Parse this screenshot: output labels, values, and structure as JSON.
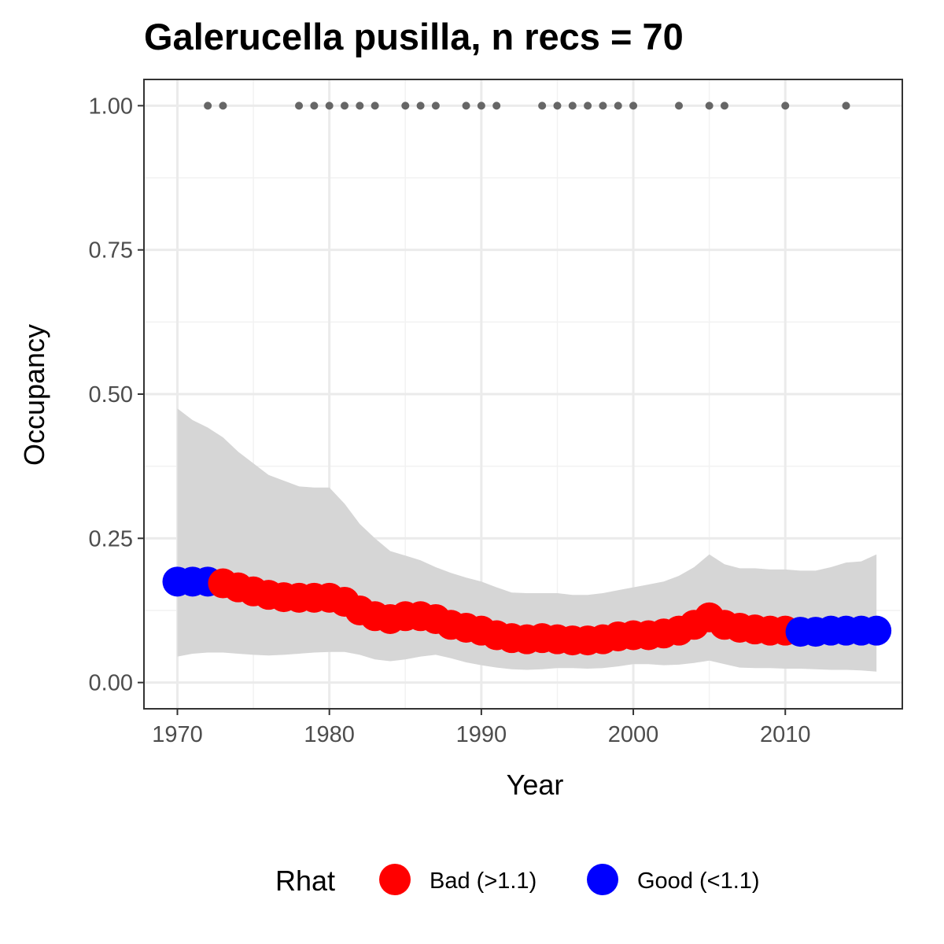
{
  "chart_data": {
    "type": "scatter",
    "title": "Galerucella pusilla, n recs = 70",
    "xlabel": "Year",
    "ylabel": "Occupancy",
    "xlim": [
      1967.8,
      2017.7
    ],
    "ylim": [
      -0.0455,
      1.0455
    ],
    "x_ticks": [
      1970,
      1980,
      1990,
      2000,
      2010
    ],
    "x_tick_labels": [
      "1970",
      "1980",
      "1990",
      "2000",
      "2010"
    ],
    "y_ticks": [
      0,
      0.25,
      0.5,
      0.75,
      1.0
    ],
    "y_tick_labels": [
      "0.00",
      "0.25",
      "0.50",
      "0.75",
      "1.00"
    ],
    "grid": true,
    "legend": {
      "title": "Rhat",
      "position": "bottom",
      "entries": [
        {
          "label": "Bad (>1.1)",
          "color": "#ff0000"
        },
        {
          "label": "Good (<1.1)",
          "color": "#0000ff"
        }
      ]
    },
    "observations": {
      "y": 1.0,
      "color": "#666666",
      "x": [
        1972,
        1973,
        1978,
        1979,
        1980,
        1981,
        1982,
        1983,
        1985,
        1986,
        1987,
        1989,
        1990,
        1991,
        1994,
        1995,
        1996,
        1997,
        1998,
        1999,
        2000,
        2003,
        2005,
        2006,
        2010,
        2014
      ]
    },
    "ribbon": {
      "color": "#d6d6d6",
      "x": [
        1970,
        1971,
        1972,
        1973,
        1974,
        1975,
        1976,
        1977,
        1978,
        1979,
        1980,
        1981,
        1982,
        1983,
        1984,
        1985,
        1986,
        1987,
        1988,
        1989,
        1990,
        1991,
        1992,
        1993,
        1994,
        1995,
        1996,
        1997,
        1998,
        1999,
        2000,
        2001,
        2002,
        2003,
        2004,
        2005,
        2006,
        2007,
        2008,
        2009,
        2010,
        2011,
        2012,
        2013,
        2014,
        2015,
        2016
      ],
      "lower": [
        0.045,
        0.05,
        0.052,
        0.052,
        0.05,
        0.048,
        0.047,
        0.048,
        0.05,
        0.052,
        0.053,
        0.053,
        0.048,
        0.04,
        0.037,
        0.04,
        0.045,
        0.048,
        0.042,
        0.035,
        0.03,
        0.026,
        0.023,
        0.022,
        0.023,
        0.025,
        0.025,
        0.024,
        0.025,
        0.028,
        0.032,
        0.032,
        0.03,
        0.031,
        0.034,
        0.038,
        0.032,
        0.026,
        0.025,
        0.025,
        0.024,
        0.024,
        0.023,
        0.022,
        0.022,
        0.021,
        0.019
      ],
      "upper": [
        0.475,
        0.455,
        0.442,
        0.425,
        0.4,
        0.38,
        0.36,
        0.35,
        0.34,
        0.338,
        0.338,
        0.31,
        0.275,
        0.25,
        0.228,
        0.22,
        0.212,
        0.2,
        0.19,
        0.182,
        0.175,
        0.165,
        0.156,
        0.155,
        0.155,
        0.155,
        0.152,
        0.152,
        0.155,
        0.16,
        0.165,
        0.17,
        0.175,
        0.185,
        0.2,
        0.222,
        0.205,
        0.198,
        0.198,
        0.196,
        0.196,
        0.194,
        0.194,
        0.2,
        0.208,
        0.21,
        0.222
      ]
    },
    "series": [
      {
        "name": "Bad (>1.1)",
        "color": "#ff0000",
        "x": [
          1973,
          1974,
          1975,
          1976,
          1977,
          1978,
          1979,
          1980,
          1981,
          1982,
          1983,
          1984,
          1985,
          1986,
          1987,
          1988,
          1989,
          1990,
          1991,
          1992,
          1993,
          1994,
          1995,
          1996,
          1997,
          1998,
          1999,
          2000,
          2001,
          2002,
          2003,
          2004,
          2005,
          2006,
          2007,
          2008,
          2009,
          2010
        ],
        "y": [
          0.172,
          0.165,
          0.158,
          0.152,
          0.148,
          0.147,
          0.147,
          0.147,
          0.14,
          0.125,
          0.115,
          0.11,
          0.115,
          0.115,
          0.11,
          0.1,
          0.095,
          0.09,
          0.082,
          0.077,
          0.075,
          0.077,
          0.075,
          0.073,
          0.073,
          0.075,
          0.08,
          0.082,
          0.082,
          0.085,
          0.09,
          0.1,
          0.113,
          0.1,
          0.095,
          0.092,
          0.09,
          0.09
        ]
      },
      {
        "name": "Good (<1.1)",
        "color": "#0000ff",
        "x": [
          1970,
          1971,
          1972,
          2011,
          2012,
          2013,
          2014,
          2015,
          2016
        ],
        "y": [
          0.175,
          0.175,
          0.175,
          0.088,
          0.088,
          0.09,
          0.09,
          0.09,
          0.09
        ]
      }
    ]
  }
}
